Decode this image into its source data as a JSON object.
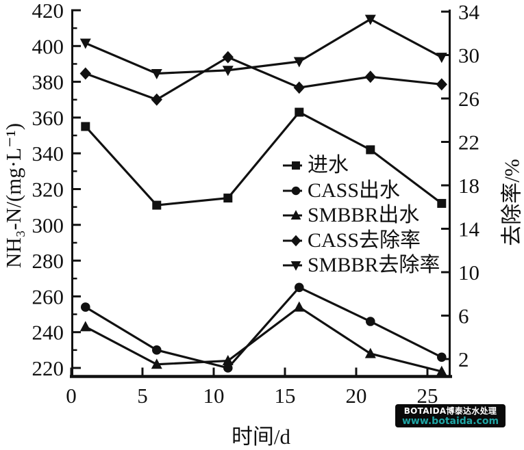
{
  "chart_data": {
    "type": "line",
    "x": [
      1,
      6,
      11,
      16,
      21,
      26
    ],
    "xticks": [
      0,
      5,
      10,
      15,
      20,
      25
    ],
    "yticks_left": [
      220,
      240,
      260,
      280,
      300,
      320,
      340,
      360,
      380,
      400,
      420
    ],
    "yticks_left_minor": [
      230,
      250,
      270,
      290,
      310,
      330,
      350,
      370,
      390,
      410
    ],
    "yticks_right": [
      2,
      6,
      10,
      14,
      18,
      22,
      26,
      30,
      34
    ],
    "xlabel": "时间/d",
    "ylabel_left": "NH₃-N/(mg·L⁻¹)",
    "ylabel_right": "去除率/%",
    "xlim": [
      0,
      26.7
    ],
    "ylim_left": [
      215,
      420
    ],
    "ylim_right": [
      0.6,
      34
    ],
    "grid": false,
    "legend_position": "center-right-inside",
    "line_color": "#111111",
    "background": "#ffffff",
    "series": [
      {
        "key": "influent",
        "name": "进水",
        "marker": "square",
        "axis": "left",
        "values": [
          355,
          311,
          315,
          363,
          342,
          312
        ]
      },
      {
        "key": "cass-effluent",
        "name": "CASS出水",
        "marker": "circle",
        "axis": "left",
        "values": [
          254,
          230,
          220,
          265,
          246,
          226
        ]
      },
      {
        "key": "smbbr-effluent",
        "name": "SMBBR出水",
        "marker": "triangle-up",
        "axis": "left",
        "values": [
          243,
          222,
          224,
          254,
          228,
          218
        ]
      },
      {
        "key": "cass-removal",
        "name": "CASS去除率",
        "marker": "diamond",
        "axis": "right",
        "values": [
          28.3,
          25.9,
          29.8,
          27.0,
          28.0,
          27.3
        ]
      },
      {
        "key": "smbbr-removal",
        "name": "SMBBR去除率",
        "marker": "triangle-down",
        "axis": "right",
        "values": [
          31.1,
          28.3,
          28.6,
          29.4,
          33.3,
          29.8
        ]
      }
    ]
  },
  "watermark": {
    "line1": "BOTAIDA博泰达水处理",
    "line2": "www.botaida.com",
    "bg_color": "#0a0a0a",
    "line1_color": "#ffffff",
    "line2_color": "#1fa6a6"
  }
}
